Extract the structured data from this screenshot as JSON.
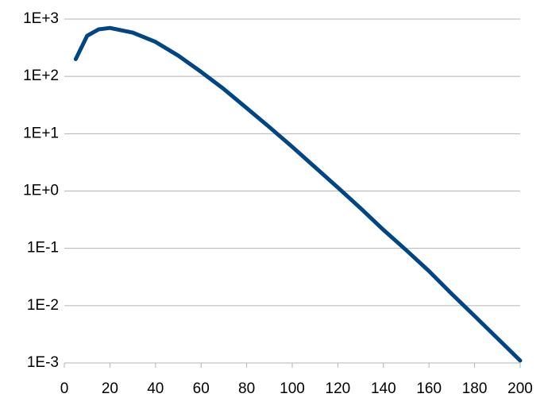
{
  "chart_data": {
    "type": "line",
    "yscale": "log",
    "grid": true,
    "color": "#004586",
    "x": [
      5,
      10,
      15,
      20,
      30,
      40,
      50,
      60,
      70,
      80,
      90,
      100,
      110,
      120,
      130,
      140,
      150,
      160,
      170,
      180,
      190,
      200
    ],
    "values": [
      200,
      510,
      660,
      700,
      580,
      400,
      230,
      120,
      60,
      28,
      13,
      5.9,
      2.6,
      1.15,
      0.5,
      0.21,
      0.093,
      0.04,
      0.016,
      0.0066,
      0.0027,
      0.0011
    ],
    "xlim": [
      0,
      200
    ],
    "xticks": [
      0,
      20,
      40,
      60,
      80,
      100,
      120,
      140,
      160,
      180,
      200
    ],
    "ylim": [
      0.001,
      1000
    ],
    "yticks": [
      {
        "value": 0.001,
        "label": "1E-3"
      },
      {
        "value": 0.01,
        "label": "1E-2"
      },
      {
        "value": 0.1,
        "label": "1E-1"
      },
      {
        "value": 1,
        "label": "1E+0"
      },
      {
        "value": 10,
        "label": "1E+1"
      },
      {
        "value": 100,
        "label": "1E+2"
      },
      {
        "value": 1000,
        "label": "1E+3"
      }
    ]
  }
}
